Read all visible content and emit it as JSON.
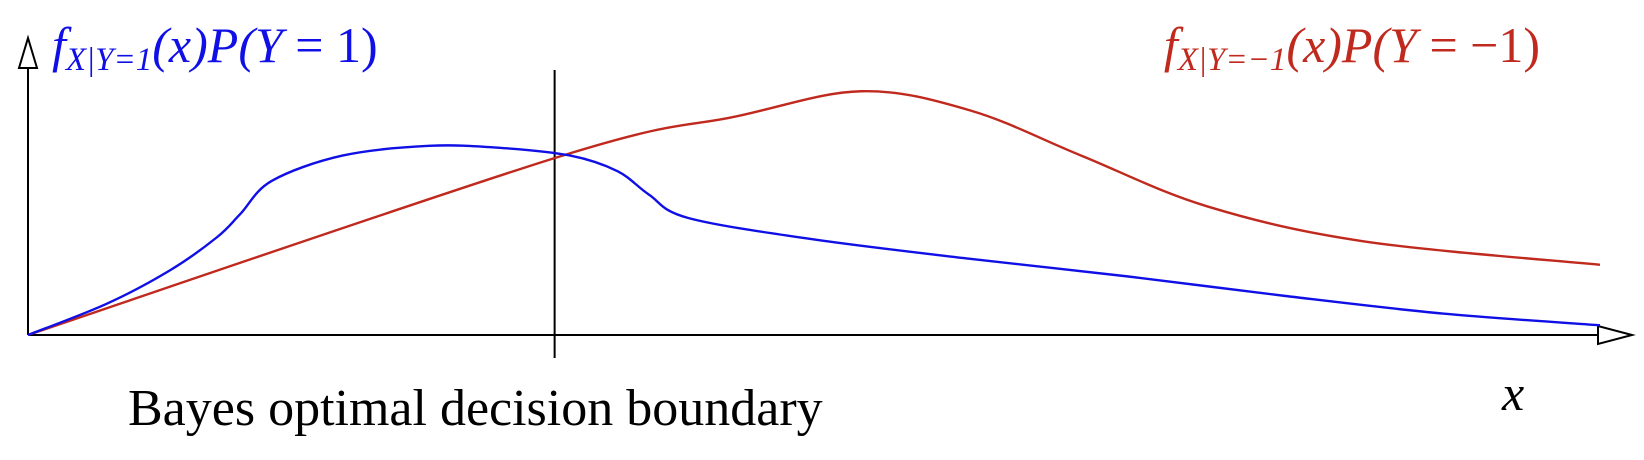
{
  "colors": {
    "class_pos": "#1010e6",
    "class_neg": "#c02a1e",
    "axis": "#000000"
  },
  "labels": {
    "boundary": "Bayes optimal decision boundary",
    "x_axis": "x"
  },
  "legend": {
    "pos": {
      "f": "f",
      "sub": "X|Y=1",
      "x": "(x)",
      "p": "P",
      "y_open": "(Y",
      "eq": " = ",
      "val": "1",
      "close": ")"
    },
    "neg": {
      "f": "f",
      "sub": "X|Y=−1",
      "x": "(x)",
      "p": "P",
      "y_open": "(Y",
      "eq": " = ",
      "val": "−1",
      "close": ")"
    }
  },
  "curves": [
    {
      "name": "f_{X|Y=1}(x) P(Y=1)",
      "color_key": "class_pos",
      "points": [
        [
          0,
          0
        ],
        [
          0.05,
          0.16
        ],
        [
          0.09,
          0.33
        ],
        [
          0.12,
          0.5
        ],
        [
          0.135,
          0.62
        ],
        [
          0.155,
          0.79
        ],
        [
          0.2,
          0.92
        ],
        [
          0.255,
          0.97
        ],
        [
          0.3,
          0.96
        ],
        [
          0.345,
          0.92
        ],
        [
          0.375,
          0.84
        ],
        [
          0.395,
          0.72
        ],
        [
          0.42,
          0.6
        ],
        [
          0.5,
          0.49
        ],
        [
          0.6,
          0.39
        ],
        [
          0.7,
          0.3
        ],
        [
          0.8,
          0.2
        ],
        [
          0.9,
          0.11
        ],
        [
          1.0,
          0.05
        ]
      ]
    },
    {
      "name": "f_{X|Y=-1}(x) P(Y=-1)",
      "color_key": "class_neg",
      "points": [
        [
          0,
          0
        ],
        [
          0.34,
          0.92
        ],
        [
          0.45,
          1.12
        ],
        [
          0.53,
          1.25
        ],
        [
          0.6,
          1.15
        ],
        [
          0.67,
          0.92
        ],
        [
          0.75,
          0.66
        ],
        [
          0.85,
          0.48
        ],
        [
          1.0,
          0.36
        ]
      ]
    }
  ],
  "decision_boundary_x": 0.335
}
